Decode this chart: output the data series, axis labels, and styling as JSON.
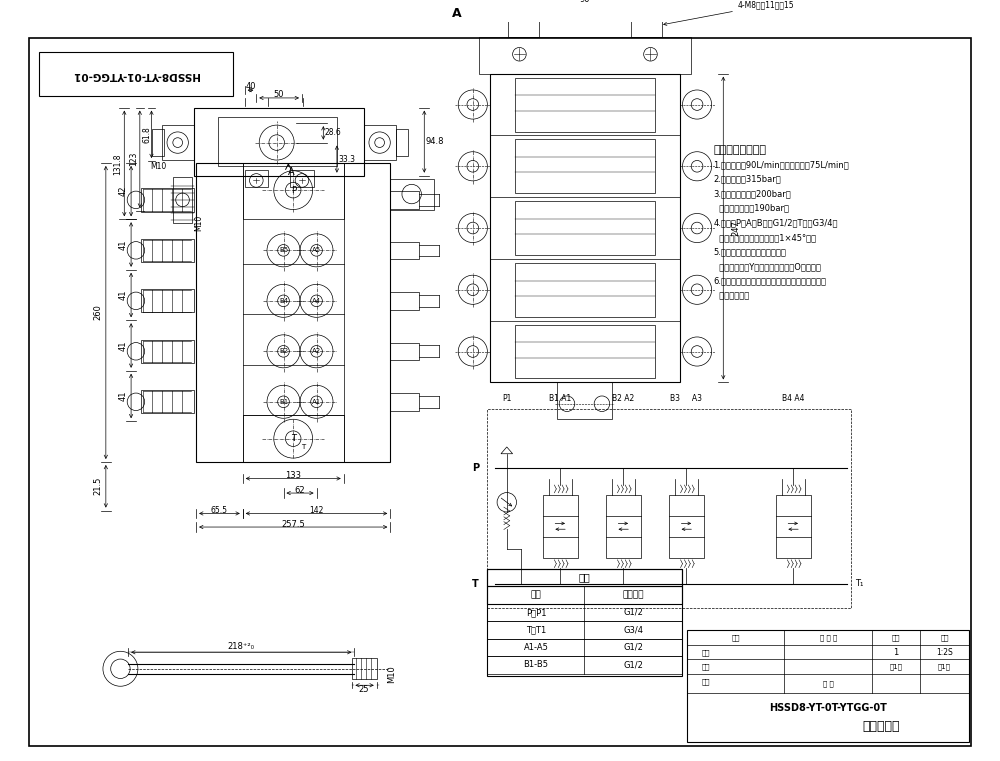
{
  "bg_color": "#ffffff",
  "line_color": "#000000",
  "tech_requirements_title": "技术要求和参数：",
  "tech_requirements": [
    "1.最大流量：90L/min；额定流量：75L/min；",
    "2.最高压力：315bar；",
    "3.安全阀调定压力200bar；",
    "  过载阀调定压力190bar；",
    "4.油口：P、A、B口为G1/2，T口为G3/4；",
    "  均为平面密封，螺纹孔口倒1×45°角；",
    "5.控制方式：手动，弹簧复位；",
    "  第一、三联为Y型阀杆，其余联为O型阀杆；",
    "6.阀体表面磷化处理，安全阀及螺堵镀锌，支架后",
    "  盖为铝本色。"
  ],
  "table_title": "阀体",
  "table_rows": [
    [
      "P、P1",
      "G1/2"
    ],
    [
      "T、T1",
      "G3/4"
    ],
    [
      "A1-A5",
      "G1/2"
    ],
    [
      "B1-B5",
      "G1/2"
    ]
  ],
  "bottom_right_text1": "HSSD8-YT-0T-YTGG-0T",
  "bottom_right_text2": "五联多路阀"
}
